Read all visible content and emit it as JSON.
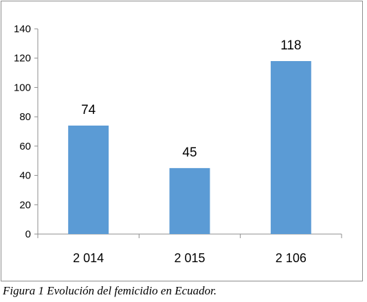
{
  "caption": "Figura 1 Evolución del femicidio en Ecuador.",
  "chart_data": {
    "type": "bar",
    "title": "",
    "xlabel": "",
    "ylabel": "",
    "categories": [
      "2 014",
      "2 015",
      "2 106"
    ],
    "values": [
      74,
      45,
      118
    ],
    "ylim": [
      0,
      140
    ],
    "yticks": [
      "0",
      "20",
      "40",
      "60",
      "80",
      "100",
      "120",
      "140"
    ],
    "data_labels": [
      "74",
      "45",
      "118"
    ],
    "bar_color": "#5b9bd5",
    "grid": false,
    "legend": "none"
  }
}
